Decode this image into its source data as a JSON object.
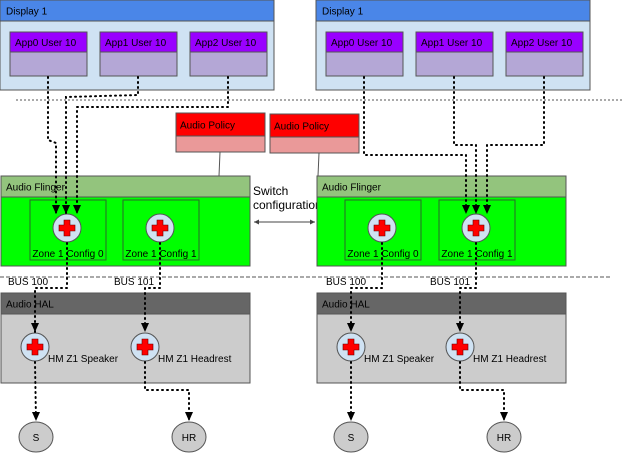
{
  "colors": {
    "display_header": "#4a86e8",
    "display_body": "#cfe2f3",
    "app_header": "#9900ff",
    "app_body": "#b4a7d6",
    "policy_header": "#ff0000",
    "policy_body": "#ea9999",
    "flinger_header": "#93c47d",
    "flinger_body": "#00ff00",
    "hal_header": "#666666",
    "hal_body": "#cccccc",
    "device_circle": "#cfe2f3",
    "cross": "#ff0000",
    "output_circle": "#cccccc"
  },
  "switch_label": [
    "Switch",
    "configuration"
  ],
  "sides": [
    {
      "display": {
        "title": "Display 1",
        "apps": [
          "App0 User 10",
          "App1 User 10",
          "App2 User 10"
        ]
      },
      "policy": {
        "title": "Audio Policy"
      },
      "flinger": {
        "title": "Audio Flinger",
        "zones": [
          "Zone 1 Config 0",
          "Zone 1 Config 1"
        ]
      },
      "buses": [
        "BUS 100",
        "BUS 101"
      ],
      "hal": {
        "title": "Audio HAL",
        "devices": [
          "HM Z1 Speaker",
          "HM Z1 Headrest"
        ]
      },
      "outputs": [
        "S",
        "HR"
      ],
      "active_config": "Zone 1 Config 0"
    },
    {
      "display": {
        "title": "Display 1",
        "apps": [
          "App0 User 10",
          "App1 User 10",
          "App2 User 10"
        ]
      },
      "policy": {
        "title": "Audio Policy"
      },
      "flinger": {
        "title": "Audio Flinger",
        "zones": [
          "Zone 1 Config 0",
          "Zone 1 Config 1"
        ]
      },
      "buses": [
        "BUS 100",
        "BUS 101"
      ],
      "hal": {
        "title": "Audio HAL",
        "devices": [
          "HM Z1 Speaker",
          "HM Z1 Headrest"
        ]
      },
      "outputs": [
        "S",
        "HR"
      ],
      "active_config": "Zone 1 Config 1"
    }
  ]
}
